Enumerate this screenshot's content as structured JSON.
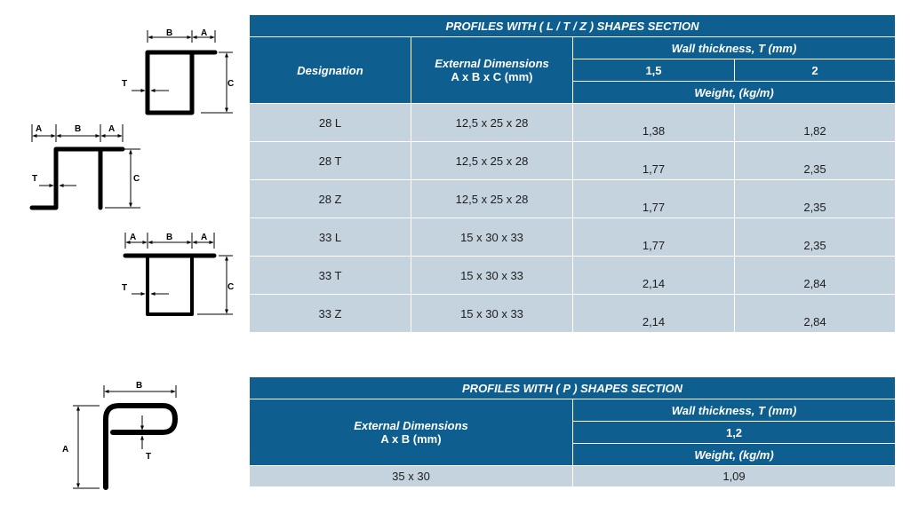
{
  "table1": {
    "title": "PROFILES WITH ( L / T / Z ) SHAPES SECTION",
    "col_designation": "Designation",
    "col_external_line1": "External Dimensions",
    "col_external_line2": "A x B x C (mm)",
    "col_wall": "Wall thickness, T (mm)",
    "col_t1": "1,5",
    "col_t2": "2",
    "col_weight": "Weight, (kg/m)",
    "rows": [
      {
        "designation": "28 L",
        "dims": "12,5 x 25 x 28",
        "w1": "1,38",
        "w2": "1,82"
      },
      {
        "designation": "28 T",
        "dims": "12,5 x 25 x 28",
        "w1": "1,77",
        "w2": "2,35"
      },
      {
        "designation": "28 Z",
        "dims": "12,5 x 25 x 28",
        "w1": "1,77",
        "w2": "2,35"
      },
      {
        "designation": "33 L",
        "dims": "15 x 30 x 33",
        "w1": "1,77",
        "w2": "2,35"
      },
      {
        "designation": "33 T",
        "dims": "15 x 30 x 33",
        "w1": "2,14",
        "w2": "2,84"
      },
      {
        "designation": "33 Z",
        "dims": "15 x 30 x 33",
        "w1": "2,14",
        "w2": "2,84"
      }
    ]
  },
  "table2": {
    "title": "PROFILES WITH ( P ) SHAPES SECTION",
    "col_external_line1": "External Dimensions",
    "col_external_line2": "A x B (mm)",
    "col_wall": "Wall thickness, T (mm)",
    "col_t1": "1,2",
    "col_weight": "Weight, (kg/m)",
    "rows": [
      {
        "dims": "35 x 30",
        "w1": "1,09"
      }
    ]
  },
  "figures": {
    "label_a": "A",
    "label_b": "B",
    "label_c": "C",
    "label_t": "T"
  },
  "colors": {
    "header_bg": "#0e5f8f",
    "row_bg": "#c5d3df",
    "header_text": "#ffffff"
  }
}
